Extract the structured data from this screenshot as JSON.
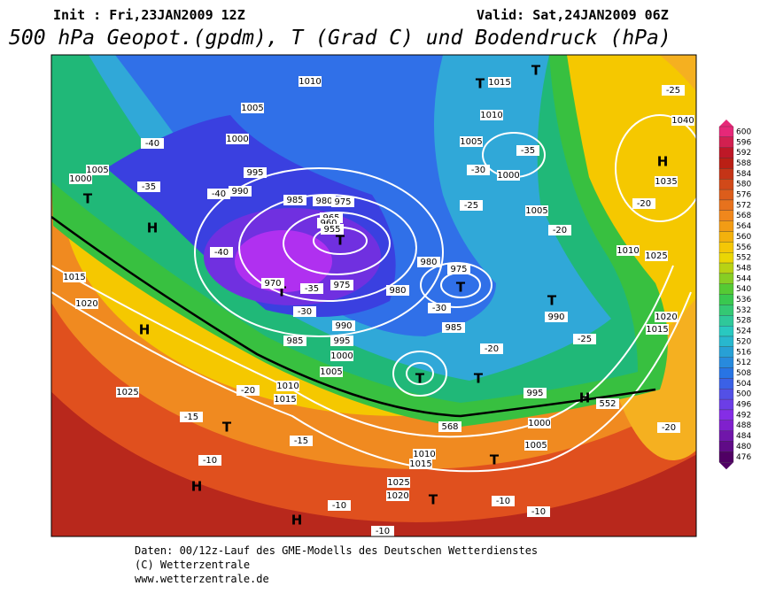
{
  "header": {
    "init": "Init : Fri,23JAN2009 12Z",
    "valid": "Valid: Sat,24JAN2009 06Z",
    "title": "500 hPa Geopot.(gpdm), T (Grad C) und Bodendruck (hPa)"
  },
  "legend": {
    "levels": [
      600,
      596,
      592,
      588,
      584,
      580,
      576,
      572,
      568,
      564,
      560,
      556,
      552,
      548,
      544,
      540,
      536,
      532,
      528,
      524,
      520,
      516,
      512,
      508,
      504,
      500,
      496,
      492,
      488,
      484,
      480,
      476
    ]
  },
  "map_labels": [
    "T",
    "T",
    "T",
    "T",
    "H",
    "H",
    "H",
    "H",
    "T",
    "T",
    "T",
    "T",
    "T",
    "T",
    "H",
    "T",
    "T",
    "H",
    "1010",
    "1005",
    "1000",
    "995",
    "990",
    "985",
    "980",
    "975",
    "970",
    "965",
    "960",
    "955",
    "975",
    "980",
    "985",
    "990",
    "995",
    "1000",
    "1005",
    "1010",
    "1015",
    "1020",
    "1015",
    "1025",
    "1005",
    "1000",
    "975",
    "980",
    "985",
    "990",
    "995",
    "1000",
    "1005",
    "1010",
    "1015",
    "1020",
    "1025",
    "-40",
    "-35",
    "-40",
    "-40",
    "-35",
    "-30",
    "-30",
    "-25",
    "-20",
    "-25",
    "-20",
    "-15",
    "-15",
    "-10",
    "-10",
    "-10",
    "-10",
    "-10",
    "-20",
    "-25",
    "-20",
    "1040",
    "1035",
    "1025",
    "1020",
    "1015",
    "1010",
    "1015",
    "1010",
    "1005",
    "1000",
    "1005",
    "-35",
    "-30",
    "-20",
    "552",
    "568"
  ],
  "footer": [
    "Daten: 00/12z-Lauf des GME-Modells des Deutschen Wetterdienstes",
    "(C) Wetterzentrale",
    "www.wetterzentrale.de"
  ]
}
